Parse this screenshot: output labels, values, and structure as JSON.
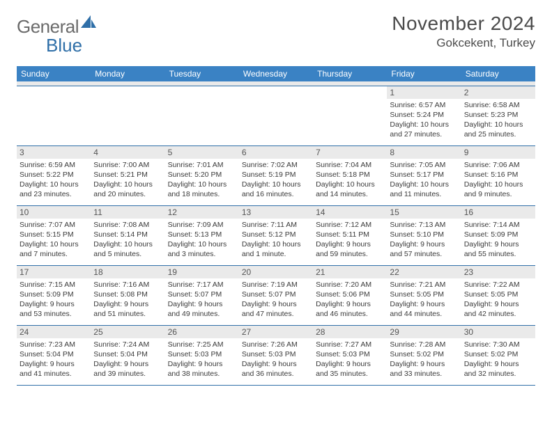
{
  "logo": {
    "text1": "General",
    "text2": "Blue"
  },
  "title": {
    "month": "November 2024",
    "location": "Gokcekent, Turkey"
  },
  "headers": [
    "Sunday",
    "Monday",
    "Tuesday",
    "Wednesday",
    "Thursday",
    "Friday",
    "Saturday"
  ],
  "colors": {
    "header_bg": "#3a82c4",
    "header_fg": "#ffffff",
    "band_bg": "#eaeaea",
    "rule": "#2f6fa8",
    "text": "#3a3a3a",
    "title_text": "#4a4a4a",
    "logo_gray": "#6a6a6a",
    "logo_blue": "#2f6fa8"
  },
  "weeks": [
    [
      null,
      null,
      null,
      null,
      null,
      {
        "n": "1",
        "sr": "Sunrise: 6:57 AM",
        "ss": "Sunset: 5:24 PM",
        "d1": "Daylight: 10 hours",
        "d2": "and 27 minutes."
      },
      {
        "n": "2",
        "sr": "Sunrise: 6:58 AM",
        "ss": "Sunset: 5:23 PM",
        "d1": "Daylight: 10 hours",
        "d2": "and 25 minutes."
      }
    ],
    [
      {
        "n": "3",
        "sr": "Sunrise: 6:59 AM",
        "ss": "Sunset: 5:22 PM",
        "d1": "Daylight: 10 hours",
        "d2": "and 23 minutes."
      },
      {
        "n": "4",
        "sr": "Sunrise: 7:00 AM",
        "ss": "Sunset: 5:21 PM",
        "d1": "Daylight: 10 hours",
        "d2": "and 20 minutes."
      },
      {
        "n": "5",
        "sr": "Sunrise: 7:01 AM",
        "ss": "Sunset: 5:20 PM",
        "d1": "Daylight: 10 hours",
        "d2": "and 18 minutes."
      },
      {
        "n": "6",
        "sr": "Sunrise: 7:02 AM",
        "ss": "Sunset: 5:19 PM",
        "d1": "Daylight: 10 hours",
        "d2": "and 16 minutes."
      },
      {
        "n": "7",
        "sr": "Sunrise: 7:04 AM",
        "ss": "Sunset: 5:18 PM",
        "d1": "Daylight: 10 hours",
        "d2": "and 14 minutes."
      },
      {
        "n": "8",
        "sr": "Sunrise: 7:05 AM",
        "ss": "Sunset: 5:17 PM",
        "d1": "Daylight: 10 hours",
        "d2": "and 11 minutes."
      },
      {
        "n": "9",
        "sr": "Sunrise: 7:06 AM",
        "ss": "Sunset: 5:16 PM",
        "d1": "Daylight: 10 hours",
        "d2": "and 9 minutes."
      }
    ],
    [
      {
        "n": "10",
        "sr": "Sunrise: 7:07 AM",
        "ss": "Sunset: 5:15 PM",
        "d1": "Daylight: 10 hours",
        "d2": "and 7 minutes."
      },
      {
        "n": "11",
        "sr": "Sunrise: 7:08 AM",
        "ss": "Sunset: 5:14 PM",
        "d1": "Daylight: 10 hours",
        "d2": "and 5 minutes."
      },
      {
        "n": "12",
        "sr": "Sunrise: 7:09 AM",
        "ss": "Sunset: 5:13 PM",
        "d1": "Daylight: 10 hours",
        "d2": "and 3 minutes."
      },
      {
        "n": "13",
        "sr": "Sunrise: 7:11 AM",
        "ss": "Sunset: 5:12 PM",
        "d1": "Daylight: 10 hours",
        "d2": "and 1 minute."
      },
      {
        "n": "14",
        "sr": "Sunrise: 7:12 AM",
        "ss": "Sunset: 5:11 PM",
        "d1": "Daylight: 9 hours",
        "d2": "and 59 minutes."
      },
      {
        "n": "15",
        "sr": "Sunrise: 7:13 AM",
        "ss": "Sunset: 5:10 PM",
        "d1": "Daylight: 9 hours",
        "d2": "and 57 minutes."
      },
      {
        "n": "16",
        "sr": "Sunrise: 7:14 AM",
        "ss": "Sunset: 5:09 PM",
        "d1": "Daylight: 9 hours",
        "d2": "and 55 minutes."
      }
    ],
    [
      {
        "n": "17",
        "sr": "Sunrise: 7:15 AM",
        "ss": "Sunset: 5:09 PM",
        "d1": "Daylight: 9 hours",
        "d2": "and 53 minutes."
      },
      {
        "n": "18",
        "sr": "Sunrise: 7:16 AM",
        "ss": "Sunset: 5:08 PM",
        "d1": "Daylight: 9 hours",
        "d2": "and 51 minutes."
      },
      {
        "n": "19",
        "sr": "Sunrise: 7:17 AM",
        "ss": "Sunset: 5:07 PM",
        "d1": "Daylight: 9 hours",
        "d2": "and 49 minutes."
      },
      {
        "n": "20",
        "sr": "Sunrise: 7:19 AM",
        "ss": "Sunset: 5:07 PM",
        "d1": "Daylight: 9 hours",
        "d2": "and 47 minutes."
      },
      {
        "n": "21",
        "sr": "Sunrise: 7:20 AM",
        "ss": "Sunset: 5:06 PM",
        "d1": "Daylight: 9 hours",
        "d2": "and 46 minutes."
      },
      {
        "n": "22",
        "sr": "Sunrise: 7:21 AM",
        "ss": "Sunset: 5:05 PM",
        "d1": "Daylight: 9 hours",
        "d2": "and 44 minutes."
      },
      {
        "n": "23",
        "sr": "Sunrise: 7:22 AM",
        "ss": "Sunset: 5:05 PM",
        "d1": "Daylight: 9 hours",
        "d2": "and 42 minutes."
      }
    ],
    [
      {
        "n": "24",
        "sr": "Sunrise: 7:23 AM",
        "ss": "Sunset: 5:04 PM",
        "d1": "Daylight: 9 hours",
        "d2": "and 41 minutes."
      },
      {
        "n": "25",
        "sr": "Sunrise: 7:24 AM",
        "ss": "Sunset: 5:04 PM",
        "d1": "Daylight: 9 hours",
        "d2": "and 39 minutes."
      },
      {
        "n": "26",
        "sr": "Sunrise: 7:25 AM",
        "ss": "Sunset: 5:03 PM",
        "d1": "Daylight: 9 hours",
        "d2": "and 38 minutes."
      },
      {
        "n": "27",
        "sr": "Sunrise: 7:26 AM",
        "ss": "Sunset: 5:03 PM",
        "d1": "Daylight: 9 hours",
        "d2": "and 36 minutes."
      },
      {
        "n": "28",
        "sr": "Sunrise: 7:27 AM",
        "ss": "Sunset: 5:03 PM",
        "d1": "Daylight: 9 hours",
        "d2": "and 35 minutes."
      },
      {
        "n": "29",
        "sr": "Sunrise: 7:28 AM",
        "ss": "Sunset: 5:02 PM",
        "d1": "Daylight: 9 hours",
        "d2": "and 33 minutes."
      },
      {
        "n": "30",
        "sr": "Sunrise: 7:30 AM",
        "ss": "Sunset: 5:02 PM",
        "d1": "Daylight: 9 hours",
        "d2": "and 32 minutes."
      }
    ]
  ]
}
